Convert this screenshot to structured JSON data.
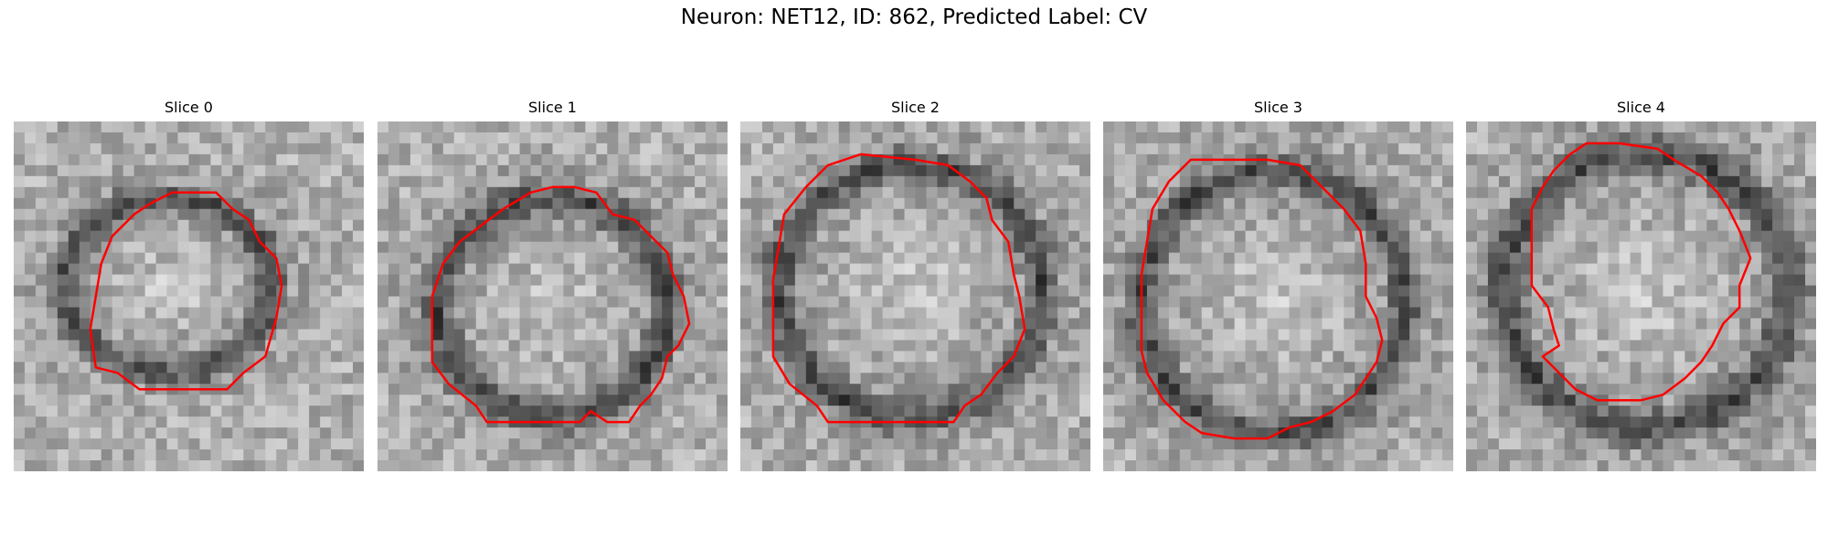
{
  "figure": {
    "title": "Neuron: NET12, ID: 862, Predicted Label: CV",
    "outline_color": "#ff0000",
    "colormap": "grayscale"
  },
  "slices": [
    {
      "title": "Slice 0"
    },
    {
      "title": "Slice 1"
    },
    {
      "title": "Slice 2"
    },
    {
      "title": "Slice 3"
    },
    {
      "title": "Slice 4"
    }
  ]
}
